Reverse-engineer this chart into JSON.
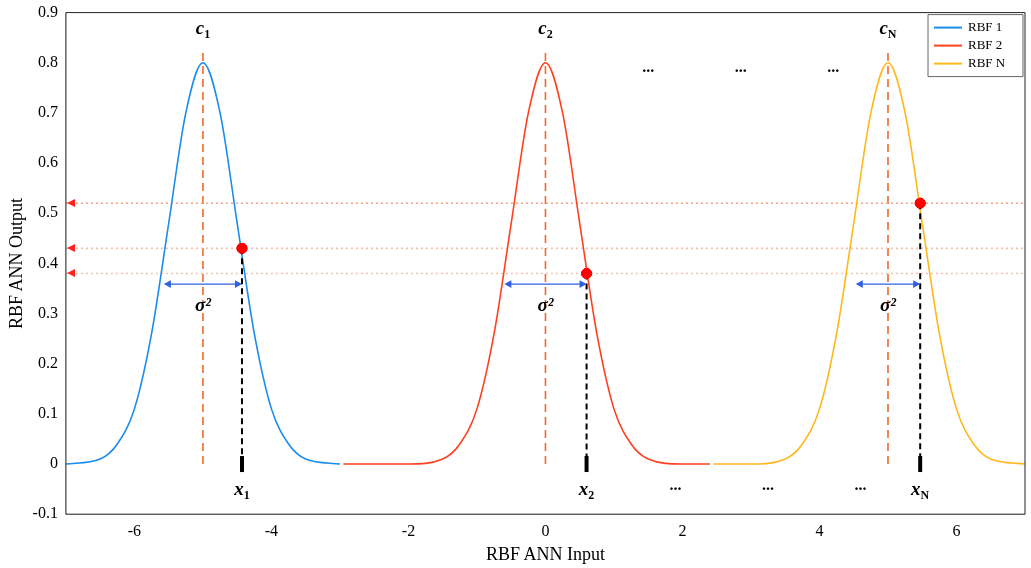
{
  "chart_data": {
    "type": "line",
    "xlabel": "RBF ANN Input",
    "ylabel": "RBF ANN Output",
    "xlim": [
      -7,
      7
    ],
    "xticks": [
      -6,
      -4,
      -2,
      0,
      2,
      4,
      6
    ],
    "ylim": [
      -0.1,
      0.9
    ],
    "yticks": [
      -0.1,
      0,
      0.1,
      0.2,
      0.3,
      0.4,
      0.5,
      0.6,
      0.7,
      0.8,
      0.9
    ],
    "grid": false,
    "legend": "top right",
    "marker": "none",
    "line_style": "solid",
    "series": [
      {
        "name": "RBF 1",
        "color": "#1a8cec",
        "x": [
          -7,
          -6.5,
          -6.25,
          -6,
          -5.75,
          -5.5,
          -5.25,
          -5,
          -4.75,
          -4.5,
          -4.25,
          -4,
          -3.75,
          -3.5,
          -3
        ],
        "values": [
          0,
          0.01,
          0.04,
          0.11,
          0.26,
          0.48,
          0.7,
          0.8,
          0.7,
          0.48,
          0.26,
          0.11,
          0.04,
          0.01,
          0
        ]
      },
      {
        "name": "RBF 2",
        "color": "#ff4020",
        "x": [
          -2.95,
          -2,
          -1.5,
          -1.25,
          -1,
          -0.75,
          -0.5,
          -0.25,
          0,
          0.25,
          0.5,
          0.75,
          1,
          1.25,
          1.5,
          2,
          2.4
        ],
        "values": [
          0,
          0,
          0.01,
          0.04,
          0.11,
          0.26,
          0.48,
          0.7,
          0.8,
          0.7,
          0.48,
          0.26,
          0.11,
          0.04,
          0.01,
          0,
          0
        ]
      },
      {
        "name": "RBF N",
        "color": "#ffb81c",
        "x": [
          2.45,
          3,
          3.5,
          3.75,
          4,
          4.25,
          4.5,
          4.75,
          5,
          5.25,
          5.5,
          5.75,
          6,
          6.25,
          6.5,
          7
        ],
        "values": [
          0,
          0,
          0.01,
          0.04,
          0.11,
          0.26,
          0.48,
          0.7,
          0.8,
          0.7,
          0.48,
          0.26,
          0.11,
          0.04,
          0.01,
          0
        ]
      },
      {
        "type": "scatter",
        "marker": "circle",
        "color": "#ff0000",
        "x": [
          -4.43,
          0.6,
          5.47
        ],
        "values": [
          0.43,
          0.38,
          0.52
        ]
      }
    ],
    "ref_lines": [
      {
        "axis": "x",
        "value": -5,
        "color": "#ee6a2a",
        "line_style": "dashed"
      },
      {
        "axis": "x",
        "value": 0,
        "color": "#ee6a2a",
        "line_style": "dashed"
      },
      {
        "axis": "x",
        "value": 5,
        "color": "#ee6a2a",
        "line_style": "dashed"
      },
      {
        "axis": "y",
        "value": 0.52,
        "color": "#f5a080",
        "line_style": "dotted"
      },
      {
        "axis": "y",
        "value": 0.43,
        "color": "#f5c0a8",
        "line_style": "dotted"
      },
      {
        "axis": "y",
        "value": 0.38,
        "color": "#f5c0a8",
        "line_style": "dotted"
      }
    ],
    "annotations": [
      {
        "text": "c$_{1}$",
        "x": -5,
        "y": 0.8
      },
      {
        "text": "c$_{2}$",
        "x": 0,
        "y": 0.8
      },
      {
        "text": "c$_{N}$",
        "x": 5,
        "y": 0.8
      },
      {
        "text": "x$_{1}$",
        "x": -4.43,
        "y": 0.43
      },
      {
        "text": "x$_{2}$",
        "x": 0.6,
        "y": 0.38
      },
      {
        "text": "x$_{N}$",
        "x": 5.47,
        "y": 0.52
      },
      {
        "text": "σ²",
        "x": -5,
        "y": 0.315
      },
      {
        "text": "σ²",
        "x": 0,
        "y": 0.315
      },
      {
        "text": "σ²",
        "x": 5,
        "y": 0.315
      },
      "...",
      "...",
      "...",
      "...",
      "...",
      "..."
    ]
  }
}
